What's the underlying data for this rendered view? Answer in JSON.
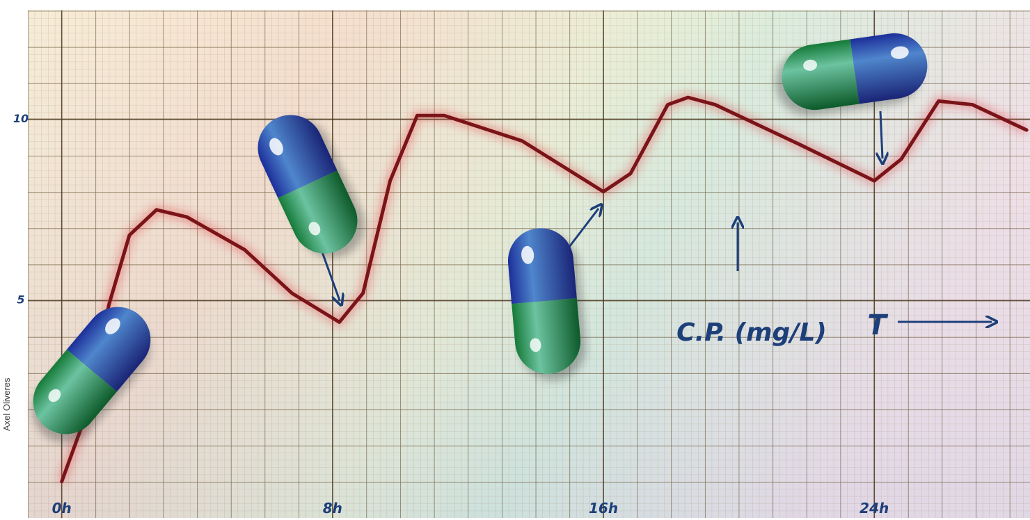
{
  "chart_data": {
    "type": "line",
    "credit": "Axel Oliveres",
    "x_label": "T",
    "y_label": "C.P. (mg/L)",
    "x": [
      0,
      0.7,
      1.4,
      2.0,
      2.8,
      3.7,
      5.4,
      6.8,
      8.2,
      8.9,
      9.7,
      10.5,
      11.3,
      13.6,
      16.0,
      16.8,
      17.9,
      18.5,
      19.3,
      21.8,
      24.0,
      24.8,
      25.9,
      26.9,
      28.5
    ],
    "series": [
      {
        "color": "#7a1418",
        "values": [
          0,
          1.8,
          4.9,
          6.8,
          7.5,
          7.3,
          6.4,
          5.2,
          4.4,
          5.2,
          8.3,
          10.1,
          10.1,
          9.4,
          8.0,
          8.5,
          10.4,
          10.6,
          10.4,
          9.3,
          8.3,
          8.9,
          10.5,
          10.4,
          9.7
        ]
      }
    ],
    "xlim": [
      -1,
      28.6
    ],
    "ylim": [
      -1,
      13
    ],
    "xticks": [
      {
        "value": 0,
        "label": "0h"
      },
      {
        "value": 8,
        "label": "8h"
      },
      {
        "value": 16,
        "label": "16h"
      },
      {
        "value": 24,
        "label": "24h"
      }
    ],
    "yticks": [
      5,
      10
    ],
    "grid": true
  }
}
